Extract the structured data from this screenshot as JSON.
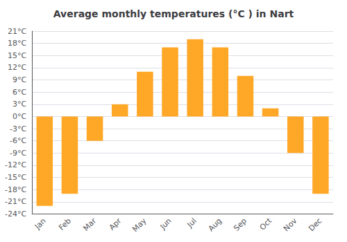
{
  "chart_data": {
    "type": "bar",
    "title": "Average monthly temperatures (°C ) in Nart",
    "categories": [
      "Jan",
      "Feb",
      "Mar",
      "Apr",
      "May",
      "Jun",
      "Jul",
      "Aug",
      "Sep",
      "Oct",
      "Nov",
      "Dec"
    ],
    "values": [
      -22,
      -19,
      -6,
      3,
      11,
      17,
      19,
      17,
      10,
      2,
      -9,
      -19
    ],
    "color": "#FFA726",
    "ylim": [
      -24,
      21
    ],
    "yticks": [
      {
        "value": -24,
        "label": "-24°C"
      },
      {
        "value": -21,
        "label": "-21°C"
      },
      {
        "value": -18,
        "label": "-18°C"
      },
      {
        "value": -15,
        "label": "-15°C"
      },
      {
        "value": -12,
        "label": "-12°C"
      },
      {
        "value": -9,
        "label": "-9°C"
      },
      {
        "value": -6,
        "label": "-6°C"
      },
      {
        "value": -3,
        "label": "-3°C"
      },
      {
        "value": 0,
        "label": "0°C"
      },
      {
        "value": 3,
        "label": "3°C"
      },
      {
        "value": 6,
        "label": "6°C"
      },
      {
        "value": 9,
        "label": "9°C"
      },
      {
        "value": 12,
        "label": "12°C"
      },
      {
        "value": 15,
        "label": "15°C"
      },
      {
        "value": 18,
        "label": "18°C"
      },
      {
        "value": 21,
        "label": "21°C"
      }
    ],
    "grid": true
  }
}
